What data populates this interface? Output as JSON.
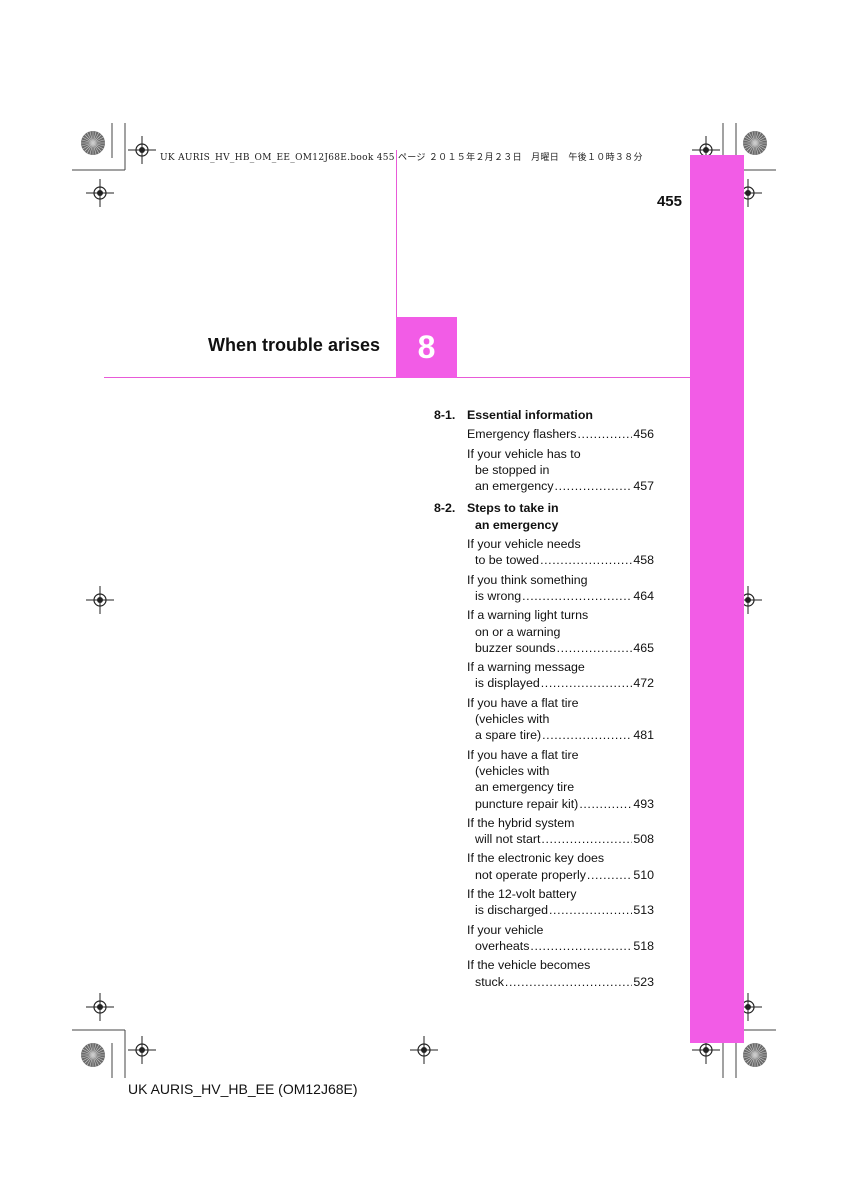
{
  "print_header": "UK AURIS_HV_HB_OM_EE_OM12J68E.book  455 ページ  ２０１５年２月２３日　月曜日　午後１０時３８分",
  "page_number": "455",
  "chapter": {
    "number": "8",
    "title": "When trouble arises"
  },
  "colors": {
    "accent": "#f25ce6"
  },
  "toc": {
    "sections": [
      {
        "number": "8-1.",
        "title_lines": [
          "Essential information"
        ],
        "entries": [
          {
            "lines": [
              "Emergency flashers"
            ],
            "page": "456"
          },
          {
            "lines": [
              "If your vehicle has to",
              "be stopped in",
              "an emergency"
            ],
            "page": "457"
          }
        ]
      },
      {
        "number": "8-2.",
        "title_lines": [
          "Steps to take in",
          "an emergency"
        ],
        "entries": [
          {
            "lines": [
              "If your vehicle needs",
              "to be towed"
            ],
            "page": "458"
          },
          {
            "lines": [
              "If you think something",
              "is wrong"
            ],
            "page": "464"
          },
          {
            "lines": [
              "If a warning light turns",
              "on or a warning",
              "buzzer sounds"
            ],
            "page": "465"
          },
          {
            "lines": [
              "If a warning message",
              "is displayed"
            ],
            "page": "472"
          },
          {
            "lines": [
              "If you have a flat tire",
              "(vehicles with",
              "a spare tire)"
            ],
            "page": "481"
          },
          {
            "lines": [
              "If you have a flat tire",
              "(vehicles with",
              "an emergency tire",
              "puncture repair kit)"
            ],
            "page": "493"
          },
          {
            "lines": [
              "If the hybrid system",
              "will not start"
            ],
            "page": "508"
          },
          {
            "lines": [
              "If the electronic key does",
              "not operate properly"
            ],
            "page": "510"
          },
          {
            "lines": [
              "If the 12-volt battery",
              "is discharged"
            ],
            "page": "513"
          },
          {
            "lines": [
              "If your vehicle",
              "overheats"
            ],
            "page": "518"
          },
          {
            "lines": [
              "If the vehicle becomes",
              "stuck"
            ],
            "page": "523"
          }
        ]
      }
    ]
  },
  "footer": "UK AURIS_HV_HB_EE (OM12J68E)"
}
